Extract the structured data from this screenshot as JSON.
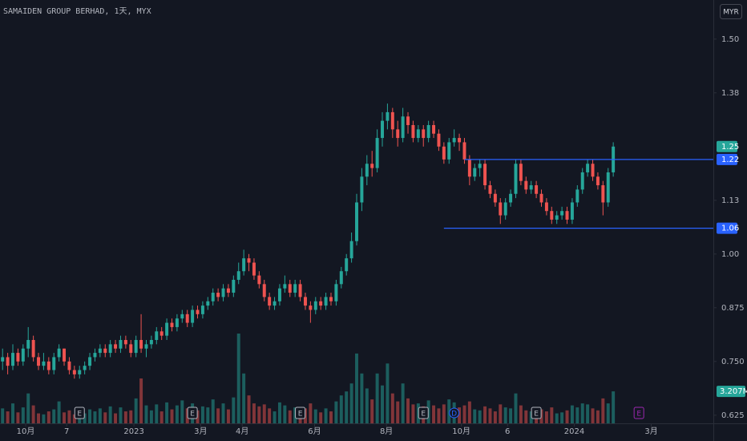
{
  "chart_data": {
    "type": "candlestick",
    "title": "SAMAIDEN GROUP BERHAD, 1天, MYX",
    "currency": "MYR",
    "up_color": "#26a69a",
    "down_color": "#ef5350",
    "line_color": "#2962ff",
    "event_color": "#9c27b0",
    "xlim": [
      -0.5,
      138.5
    ],
    "ylim": [
      0.606,
      1.591
    ],
    "yticks": [
      0.625,
      {
        "value": 0.75,
        "label": "0.750"
      },
      0.875,
      {
        "value": 1,
        "label": "1.00"
      },
      {
        "value": 1.125,
        "label": "1.13"
      },
      {
        "value": 1.375,
        "label": "1.38"
      },
      {
        "value": 1.5,
        "label": "1.50"
      }
    ],
    "xticks": [
      {
        "value": 4.5,
        "label": "10月"
      },
      {
        "value": 12.5,
        "label": "7"
      },
      {
        "value": 25.6,
        "label": "2023"
      },
      {
        "value": 38.6,
        "label": "3月"
      },
      {
        "value": 46.7,
        "label": "4月"
      },
      {
        "value": 60.8,
        "label": "6月"
      },
      {
        "value": 74.8,
        "label": "8月"
      },
      {
        "value": 89.4,
        "label": "10月"
      },
      {
        "value": 98.4,
        "label": "6"
      },
      {
        "value": 111.4,
        "label": "2024"
      },
      {
        "value": 126.4,
        "label": "3月"
      }
    ],
    "hlines": [
      {
        "value": 1.22,
        "start": 90
      },
      {
        "value": 1.06,
        "start": 86
      }
    ],
    "events": [
      {
        "label": "E",
        "index": 15
      },
      {
        "label": "E",
        "index": 37
      },
      {
        "label": "E",
        "index": 58
      },
      {
        "label": "E",
        "index": 82
      },
      {
        "label": "D",
        "index": 88
      },
      {
        "label": "E",
        "index": 104
      },
      {
        "label": "E",
        "index": 124
      }
    ],
    "ohlc": [
      [
        0.75,
        0.78,
        0.73,
        0.76
      ],
      [
        0.76,
        0.77,
        0.72,
        0.74
      ],
      [
        0.74,
        0.79,
        0.73,
        0.77
      ],
      [
        0.77,
        0.78,
        0.74,
        0.75
      ],
      [
        0.75,
        0.79,
        0.74,
        0.78
      ],
      [
        0.78,
        0.83,
        0.76,
        0.8
      ],
      [
        0.8,
        0.81,
        0.75,
        0.76
      ],
      [
        0.76,
        0.77,
        0.73,
        0.74
      ],
      [
        0.74,
        0.77,
        0.73,
        0.75
      ],
      [
        0.75,
        0.76,
        0.72,
        0.73
      ],
      [
        0.73,
        0.77,
        0.72,
        0.76
      ],
      [
        0.76,
        0.79,
        0.75,
        0.78
      ],
      [
        0.78,
        0.78,
        0.74,
        0.75
      ],
      [
        0.75,
        0.76,
        0.72,
        0.73
      ],
      [
        0.73,
        0.74,
        0.71,
        0.72
      ],
      [
        0.72,
        0.74,
        0.71,
        0.73
      ],
      [
        0.73,
        0.75,
        0.72,
        0.74
      ],
      [
        0.74,
        0.77,
        0.73,
        0.76
      ],
      [
        0.76,
        0.78,
        0.75,
        0.77
      ],
      [
        0.77,
        0.79,
        0.76,
        0.78
      ],
      [
        0.78,
        0.79,
        0.76,
        0.77
      ],
      [
        0.77,
        0.8,
        0.76,
        0.79
      ],
      [
        0.79,
        0.8,
        0.77,
        0.78
      ],
      [
        0.78,
        0.81,
        0.77,
        0.8
      ],
      [
        0.8,
        0.81,
        0.78,
        0.79
      ],
      [
        0.79,
        0.8,
        0.76,
        0.77
      ],
      [
        0.77,
        0.81,
        0.76,
        0.8
      ],
      [
        0.8,
        0.86,
        0.77,
        0.78
      ],
      [
        0.78,
        0.8,
        0.76,
        0.79
      ],
      [
        0.79,
        0.81,
        0.78,
        0.8
      ],
      [
        0.8,
        0.83,
        0.79,
        0.82
      ],
      [
        0.82,
        0.83,
        0.8,
        0.81
      ],
      [
        0.81,
        0.85,
        0.8,
        0.84
      ],
      [
        0.84,
        0.85,
        0.82,
        0.83
      ],
      [
        0.83,
        0.86,
        0.82,
        0.85
      ],
      [
        0.85,
        0.87,
        0.84,
        0.86
      ],
      [
        0.86,
        0.87,
        0.83,
        0.84
      ],
      [
        0.84,
        0.88,
        0.83,
        0.87
      ],
      [
        0.87,
        0.88,
        0.85,
        0.86
      ],
      [
        0.86,
        0.89,
        0.85,
        0.88
      ],
      [
        0.88,
        0.9,
        0.87,
        0.89
      ],
      [
        0.89,
        0.92,
        0.88,
        0.91
      ],
      [
        0.91,
        0.92,
        0.89,
        0.9
      ],
      [
        0.9,
        0.93,
        0.89,
        0.92
      ],
      [
        0.92,
        0.93,
        0.9,
        0.91
      ],
      [
        0.91,
        0.95,
        0.9,
        0.94
      ],
      [
        0.94,
        0.98,
        0.93,
        0.96
      ],
      [
        0.96,
        1.01,
        0.95,
        0.99
      ],
      [
        0.99,
        1.0,
        0.96,
        0.98
      ],
      [
        0.98,
        0.99,
        0.94,
        0.95
      ],
      [
        0.95,
        0.96,
        0.92,
        0.93
      ],
      [
        0.93,
        0.94,
        0.89,
        0.9
      ],
      [
        0.9,
        0.91,
        0.87,
        0.88
      ],
      [
        0.88,
        0.9,
        0.87,
        0.89
      ],
      [
        0.89,
        0.93,
        0.88,
        0.92
      ],
      [
        0.92,
        0.95,
        0.91,
        0.93
      ],
      [
        0.93,
        0.94,
        0.9,
        0.91
      ],
      [
        0.91,
        0.94,
        0.9,
        0.93
      ],
      [
        0.93,
        0.94,
        0.89,
        0.9
      ],
      [
        0.9,
        0.91,
        0.87,
        0.88
      ],
      [
        0.88,
        0.89,
        0.84,
        0.87
      ],
      [
        0.87,
        0.9,
        0.86,
        0.89
      ],
      [
        0.89,
        0.9,
        0.87,
        0.88
      ],
      [
        0.88,
        0.91,
        0.87,
        0.9
      ],
      [
        0.9,
        0.91,
        0.88,
        0.89
      ],
      [
        0.89,
        0.94,
        0.88,
        0.93
      ],
      [
        0.93,
        0.97,
        0.92,
        0.96
      ],
      [
        0.96,
        1.0,
        0.95,
        0.99
      ],
      [
        0.99,
        1.05,
        0.98,
        1.03
      ],
      [
        1.03,
        1.14,
        1.02,
        1.12
      ],
      [
        1.12,
        1.2,
        1.1,
        1.18
      ],
      [
        1.18,
        1.23,
        1.16,
        1.21
      ],
      [
        1.21,
        1.24,
        1.18,
        1.2
      ],
      [
        1.2,
        1.29,
        1.19,
        1.27
      ],
      [
        1.27,
        1.33,
        1.25,
        1.31
      ],
      [
        1.31,
        1.35,
        1.29,
        1.33
      ],
      [
        1.33,
        1.34,
        1.27,
        1.29
      ],
      [
        1.29,
        1.31,
        1.25,
        1.27
      ],
      [
        1.27,
        1.34,
        1.26,
        1.32
      ],
      [
        1.32,
        1.33,
        1.28,
        1.3
      ],
      [
        1.3,
        1.31,
        1.26,
        1.27
      ],
      [
        1.27,
        1.3,
        1.26,
        1.29
      ],
      [
        1.29,
        1.3,
        1.25,
        1.27
      ],
      [
        1.27,
        1.31,
        1.26,
        1.3
      ],
      [
        1.3,
        1.31,
        1.27,
        1.28
      ],
      [
        1.28,
        1.29,
        1.24,
        1.25
      ],
      [
        1.25,
        1.26,
        1.21,
        1.22
      ],
      [
        1.22,
        1.27,
        1.21,
        1.26
      ],
      [
        1.26,
        1.29,
        1.25,
        1.27
      ],
      [
        1.27,
        1.28,
        1.24,
        1.26
      ],
      [
        1.26,
        1.27,
        1.21,
        1.22
      ],
      [
        1.22,
        1.23,
        1.16,
        1.18
      ],
      [
        1.18,
        1.21,
        1.17,
        1.2
      ],
      [
        1.2,
        1.22,
        1.18,
        1.21
      ],
      [
        1.21,
        1.22,
        1.15,
        1.16
      ],
      [
        1.16,
        1.17,
        1.13,
        1.14
      ],
      [
        1.14,
        1.15,
        1.11,
        1.12
      ],
      [
        1.12,
        1.13,
        1.07,
        1.09
      ],
      [
        1.09,
        1.13,
        1.08,
        1.12
      ],
      [
        1.12,
        1.15,
        1.11,
        1.14
      ],
      [
        1.14,
        1.22,
        1.13,
        1.21
      ],
      [
        1.21,
        1.22,
        1.16,
        1.17
      ],
      [
        1.17,
        1.18,
        1.14,
        1.15
      ],
      [
        1.15,
        1.17,
        1.14,
        1.16
      ],
      [
        1.16,
        1.17,
        1.13,
        1.14
      ],
      [
        1.14,
        1.15,
        1.11,
        1.12
      ],
      [
        1.12,
        1.13,
        1.09,
        1.1
      ],
      [
        1.1,
        1.11,
        1.07,
        1.08
      ],
      [
        1.08,
        1.1,
        1.07,
        1.09
      ],
      [
        1.09,
        1.11,
        1.08,
        1.1
      ],
      [
        1.1,
        1.11,
        1.07,
        1.08
      ],
      [
        1.08,
        1.13,
        1.07,
        1.12
      ],
      [
        1.12,
        1.16,
        1.11,
        1.15
      ],
      [
        1.15,
        1.2,
        1.14,
        1.19
      ],
      [
        1.19,
        1.22,
        1.18,
        1.21
      ],
      [
        1.21,
        1.22,
        1.17,
        1.18
      ],
      [
        1.18,
        1.19,
        1.15,
        1.16
      ],
      [
        1.16,
        1.17,
        1.09,
        1.12
      ],
      [
        1.12,
        1.2,
        1.11,
        1.19
      ],
      [
        1.19,
        1.26,
        1.18,
        1.25
      ]
    ],
    "volume": [
      1500000,
      1200000,
      2000000,
      1100000,
      1600000,
      3000000,
      1800000,
      1000000,
      900000,
      1200000,
      1400000,
      2200000,
      1100000,
      1300000,
      900000,
      800000,
      1000000,
      1400000,
      1200000,
      1500000,
      1100000,
      1700000,
      1000000,
      1600000,
      1200000,
      1300000,
      2500000,
      4500000,
      1800000,
      1300000,
      1900000,
      1200000,
      2100000,
      1400000,
      1800000,
      2300000,
      1500000,
      2000000,
      1300000,
      1700000,
      1600000,
      2400000,
      1500000,
      2000000,
      1400000,
      2600000,
      9000000,
      5000000,
      2800000,
      2000000,
      1700000,
      1900000,
      1500000,
      1200000,
      2100000,
      1800000,
      1300000,
      1600000,
      1400000,
      1500000,
      2000000,
      1400000,
      1100000,
      1500000,
      1200000,
      2200000,
      2800000,
      3200000,
      4000000,
      7000000,
      5000000,
      3500000,
      2400000,
      5000000,
      3800000,
      6000000,
      3000000,
      2200000,
      4000000,
      2500000,
      1900000,
      2000000,
      1700000,
      2300000,
      1800000,
      1500000,
      1900000,
      2400000,
      2100000,
      1600000,
      1800000,
      2200000,
      1400000,
      1300000,
      1700000,
      1500000,
      1200000,
      1900000,
      1600000,
      1500000,
      3000000,
      1800000,
      1300000,
      1200000,
      1100000,
      1400000,
      1200000,
      1600000,
      1000000,
      1100000,
      1300000,
      1800000,
      1600000,
      2000000,
      1900000,
      1500000,
      1300000,
      2500000,
      2000000,
      3207000
    ],
    "volume_label": "3.207M"
  }
}
